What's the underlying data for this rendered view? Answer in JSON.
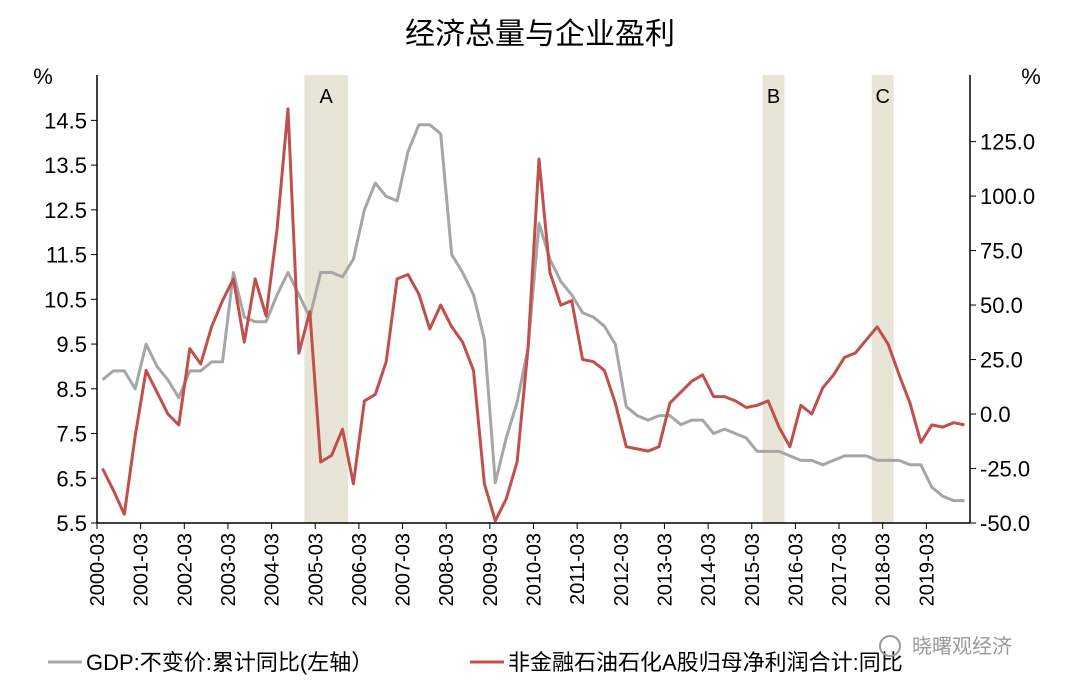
{
  "chart_data": {
    "type": "line",
    "title": "经济总量与企业盈利",
    "left_unit": "%",
    "right_unit": "%",
    "left_axis": {
      "ylim": [
        5.5,
        15.0
      ],
      "ticks": [
        "5.5",
        "6.5",
        "7.5",
        "8.5",
        "9.5",
        "10.5",
        "11.5",
        "12.5",
        "13.5",
        "14.5"
      ]
    },
    "right_axis": {
      "ylim": [
        -50,
        145
      ],
      "ticks": [
        "-50.0",
        "-25.0",
        "0.0",
        "25.0",
        "50.0",
        "75.0",
        "100.0",
        "125.0"
      ]
    },
    "x_ticks": [
      "2000-03",
      "2001-03",
      "2002-03",
      "2003-03",
      "2004-03",
      "2005-03",
      "2006-03",
      "2007-03",
      "2008-03",
      "2009-03",
      "2010-03",
      "2011-03",
      "2012-03",
      "2013-03",
      "2014-03",
      "2015-03",
      "2016-03",
      "2017-03",
      "2018-03",
      "2019-03"
    ],
    "x_start": "2000-03",
    "bands": [
      {
        "label": "A",
        "from": 19,
        "to": 23
      },
      {
        "label": "B",
        "from": 61,
        "to": 63
      },
      {
        "label": "C",
        "from": 71,
        "to": 73
      }
    ],
    "series": [
      {
        "name": "GDP:不变价:累计同比(左轴）",
        "axis": "left",
        "color": "#a6a6a6",
        "values": [
          8.7,
          8.9,
          8.9,
          8.5,
          9.5,
          9.0,
          8.7,
          8.3,
          8.9,
          8.9,
          9.1,
          9.1,
          11.1,
          10.1,
          10.0,
          10.0,
          10.6,
          11.1,
          10.6,
          10.1,
          11.1,
          11.1,
          11.0,
          11.4,
          12.5,
          13.1,
          12.8,
          12.7,
          13.8,
          14.4,
          14.4,
          14.2,
          11.5,
          11.1,
          10.6,
          9.6,
          6.4,
          7.4,
          8.2,
          9.4,
          12.2,
          11.4,
          10.9,
          10.6,
          10.2,
          10.1,
          9.9,
          9.5,
          8.1,
          7.9,
          7.8,
          7.9,
          7.9,
          7.7,
          7.8,
          7.8,
          7.5,
          7.6,
          7.5,
          7.4,
          7.1,
          7.1,
          7.1,
          7.0,
          6.9,
          6.9,
          6.8,
          6.9,
          7.0,
          7.0,
          7.0,
          6.9,
          6.9,
          6.9,
          6.8,
          6.8,
          6.3,
          6.1,
          6.0,
          6.0
        ]
      },
      {
        "name": "非金融石油石化A股归母净利润合计:同比",
        "axis": "right",
        "color": "#c0504d",
        "values": [
          -25,
          -35,
          -46,
          -10,
          20,
          10,
          0,
          -5,
          30,
          23,
          40,
          52,
          62,
          33,
          62,
          45,
          85,
          140,
          28,
          47,
          -22,
          -19,
          -7,
          -32,
          6,
          9,
          24,
          62,
          64,
          55,
          39,
          50,
          40,
          33,
          20,
          -32,
          -49,
          -39,
          -22,
          30,
          117,
          65,
          50,
          52,
          25,
          24,
          20,
          5,
          -15,
          -16,
          -17,
          -15,
          5,
          10,
          15,
          18,
          8,
          8,
          6,
          3,
          4,
          6,
          -6,
          -15,
          4,
          0,
          12,
          18,
          26,
          28,
          34,
          40,
          32,
          18,
          5,
          -13,
          -5,
          -6,
          -4,
          -5
        ]
      }
    ]
  },
  "watermark": "晓曙观经济"
}
